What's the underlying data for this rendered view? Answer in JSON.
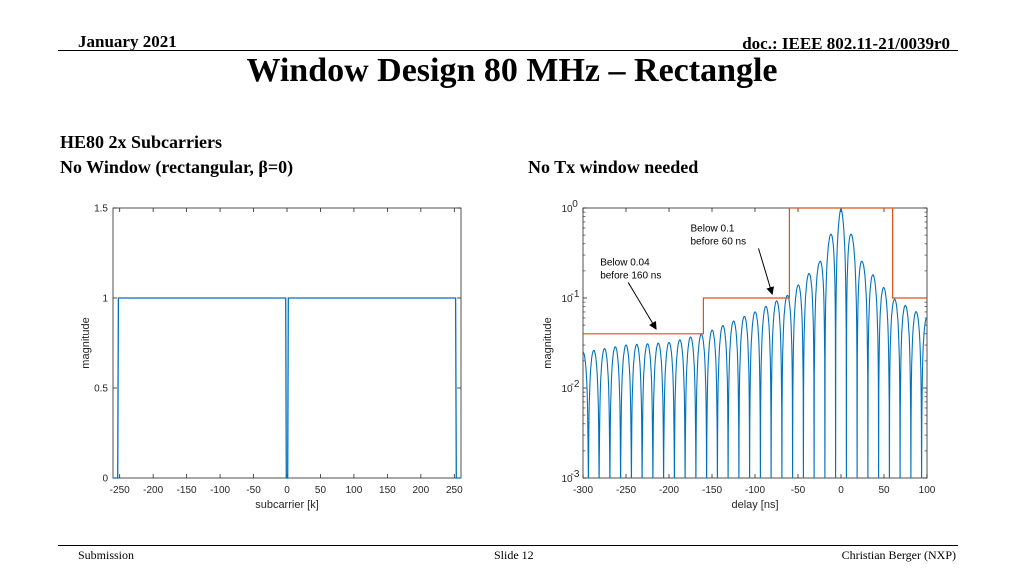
{
  "header": {
    "date": "January 2021",
    "doc": "doc.: IEEE 802.11-21/0039r0"
  },
  "title": "Window Design 80 MHz – Rectangle",
  "left_caption": {
    "line1": "HE80 2x Subcarriers",
    "line2": "No Window (rectangular, β=0)"
  },
  "right_caption": "No Tx window needed",
  "footer": {
    "left": "Submission",
    "center": "Slide 12",
    "right": "Christian Berger (NXP)"
  },
  "colors": {
    "signal": "#0072BD",
    "mask": "#D95319"
  },
  "chart_data": [
    {
      "type": "line",
      "xlabel": "subcarrier [k]",
      "ylabel": "magnitude",
      "xlim": [
        -260,
        260
      ],
      "ylim": [
        0,
        1.5
      ],
      "xticks": [
        -250,
        -200,
        -150,
        -100,
        -50,
        0,
        50,
        100,
        150,
        200,
        250
      ],
      "yticks": [
        0,
        0.5,
        1,
        1.5
      ],
      "yticklabels": [
        "0",
        "0.5",
        "1",
        "1.5"
      ],
      "series": [
        {
          "x": [
            -260,
            -253,
            -252,
            -250,
            -2,
            -1,
            1,
            2,
            250,
            252,
            253,
            260
          ],
          "y": [
            0,
            0,
            1,
            1,
            1,
            0,
            0,
            1,
            1,
            1,
            0,
            0
          ]
        }
      ]
    },
    {
      "type": "line",
      "scale": "log-y",
      "xlabel": "delay [ns]",
      "ylabel": "magnitude",
      "xlim": [
        -300,
        100
      ],
      "ylim": [
        0.001,
        1
      ],
      "xticks": [
        -300,
        -250,
        -200,
        -150,
        -100,
        -50,
        0,
        50,
        100
      ],
      "yticks": [
        0.001,
        0.01,
        0.1,
        1
      ],
      "ytick_exponents": [
        "-3",
        "-2",
        "-1",
        "0"
      ],
      "ytick_base": "10",
      "mask": {
        "x": [
          -300,
          -160,
          -160,
          -60,
          -60,
          60,
          60,
          100
        ],
        "y": [
          0.04,
          0.04,
          0.1,
          0.1,
          1,
          1,
          0.1,
          0.1
        ]
      },
      "signal": {
        "peak_delay": 0,
        "lobe_spacing_ns": 12.5,
        "envelope_x": [
          -300,
          -250,
          -200,
          -160,
          -100,
          -60,
          -25,
          0,
          25,
          60,
          100
        ],
        "envelope_y": [
          0.025,
          0.03,
          0.032,
          0.04,
          0.07,
          0.11,
          0.25,
          1,
          0.25,
          0.1,
          0.06
        ]
      },
      "annotations": [
        {
          "line1": "Below 0.1",
          "line2": "before 60 ns",
          "text_x": -175,
          "text_y": 0.55,
          "arrow_to_x": -80,
          "arrow_to_y": 0.105
        },
        {
          "line1": "Below 0.04",
          "line2": "before 160 ns",
          "text_x": -280,
          "text_y": 0.23,
          "arrow_to_x": -215,
          "arrow_to_y": 0.043
        }
      ]
    }
  ]
}
